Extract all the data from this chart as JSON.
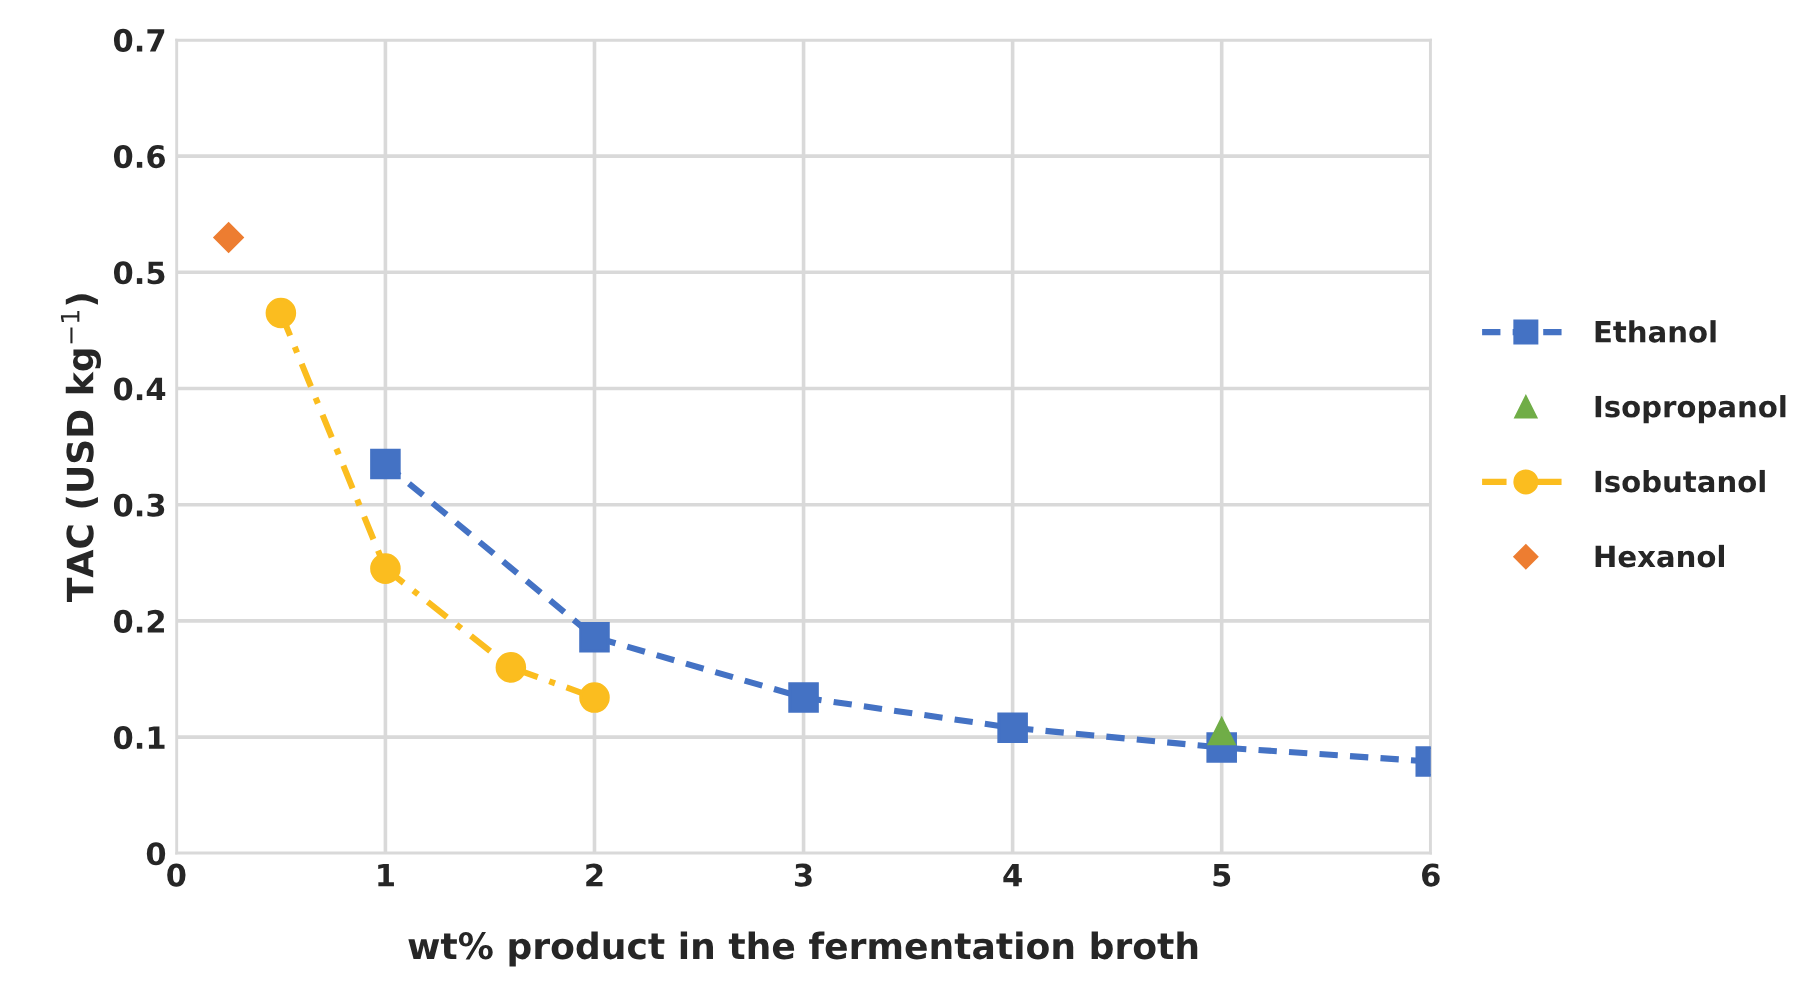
{
  "chart_data": {
    "type": "line",
    "xlabel": "wt% product in the fermentation broth",
    "ylabel": "TAC (USD kg$^{−1}$)",
    "xlim": [
      0,
      6
    ],
    "xticks": [
      0,
      1,
      2,
      3,
      4,
      5,
      6
    ],
    "ylim": [
      0,
      0.7
    ],
    "yticks": [
      0,
      0.1,
      0.2,
      0.3,
      0.4,
      0.5,
      0.6,
      0.7
    ],
    "grid": true,
    "legend": "right",
    "series": [
      {
        "name": "Ethanol",
        "color": "#4472c4",
        "marker": "square",
        "line_style": "dashed",
        "x": [
          1,
          2,
          3,
          4,
          5,
          6
        ],
        "values": [
          0.335,
          0.186,
          0.134,
          0.108,
          0.091,
          0.079
        ]
      },
      {
        "name": "Isopropanol",
        "type": "scatter",
        "color": "#70ad47",
        "marker": "triangle",
        "x": [
          5
        ],
        "values": [
          0.105
        ]
      },
      {
        "name": "Isobutanol",
        "color": "#fbbd1f",
        "marker": "circle",
        "line_style": "dashdot",
        "x": [
          0.5,
          1,
          1.6,
          2
        ],
        "values": [
          0.465,
          0.245,
          0.16,
          0.134
        ]
      },
      {
        "name": "Hexanol",
        "type": "scatter",
        "color": "#ed7d31",
        "marker": "diamond",
        "x": [
          0.25
        ],
        "values": [
          0.53
        ]
      }
    ]
  }
}
